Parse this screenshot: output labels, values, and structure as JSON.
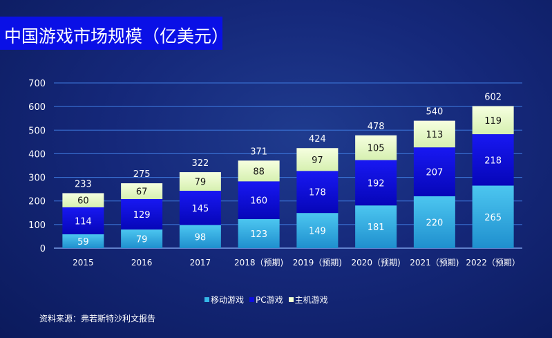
{
  "title": "中国游戏市场规模（亿美元）",
  "source": "资料来源：弗若斯特沙利文报告",
  "chart_data": {
    "type": "bar",
    "stacked": true,
    "categories": [
      "2015",
      "2016",
      "2017",
      "2018（预期)",
      "2019（预期)",
      "2020（预期)",
      "2021（预期)",
      "2022（预期）"
    ],
    "series": [
      {
        "name": "移动游戏",
        "values": [
          59,
          79,
          98,
          123,
          149,
          181,
          220,
          265
        ],
        "color": "#35b8e8"
      },
      {
        "name": "PC游戏",
        "values": [
          114,
          129,
          145,
          160,
          178,
          192,
          207,
          218
        ],
        "color": "#0d0de0"
      },
      {
        "name": "主机游戏",
        "values": [
          60,
          67,
          79,
          88,
          97,
          105,
          113,
          119
        ],
        "color": "#f0ffd0"
      }
    ],
    "totals": [
      233,
      275,
      322,
      371,
      424,
      478,
      540,
      602
    ],
    "y_ticks": [
      0,
      100,
      200,
      300,
      400,
      500,
      600,
      700
    ],
    "ylim": [
      0,
      700
    ],
    "grid": true,
    "legend_position": "bottom"
  }
}
